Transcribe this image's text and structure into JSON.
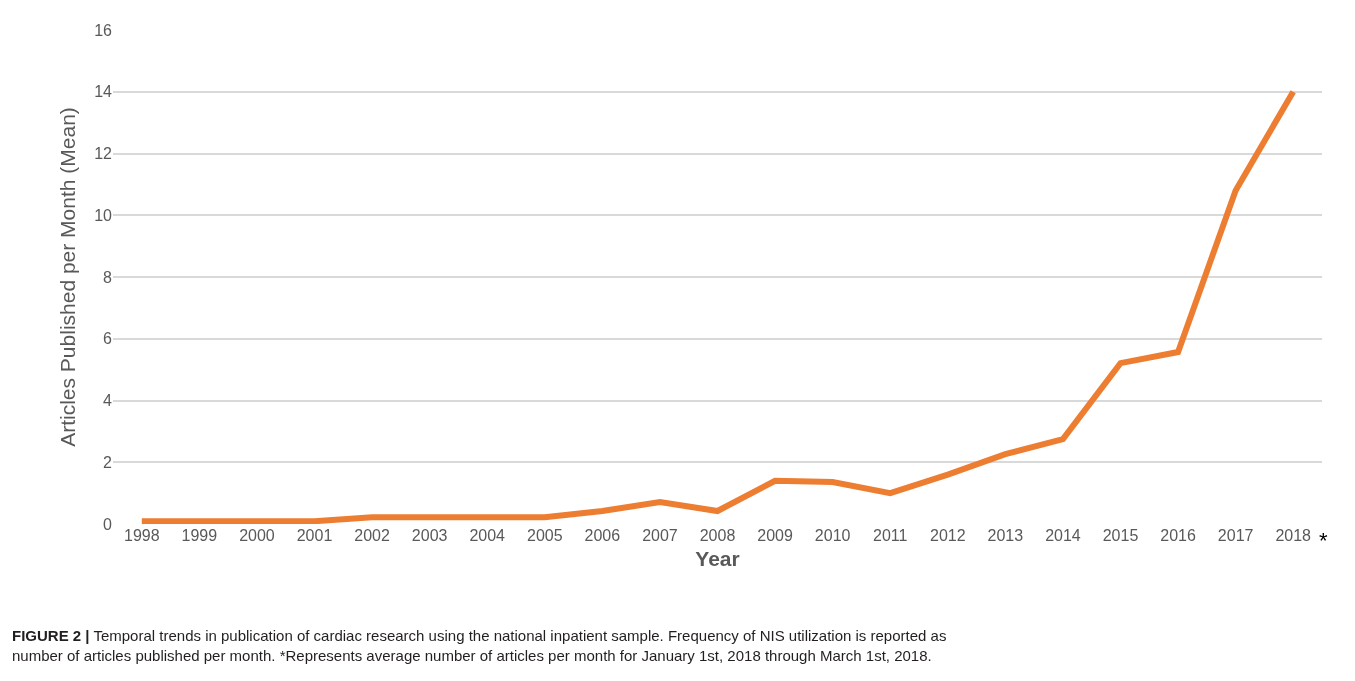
{
  "chart_data": {
    "type": "line",
    "xlabel": "Year",
    "ylabel": "Articles Published per Month (Mean)",
    "categories": [
      "1998",
      "1999",
      "2000",
      "2001",
      "2002",
      "2003",
      "2004",
      "2005",
      "2006",
      "2007",
      "2008",
      "2009",
      "2010",
      "2011",
      "2012",
      "2013",
      "2014",
      "2015",
      "2016",
      "2017",
      "2018"
    ],
    "series": [
      {
        "color": "#ed7d31",
        "values": [
          0.09,
          0.09,
          0.09,
          0.09,
          0.22,
          0.22,
          0.22,
          0.22,
          0.42,
          0.71,
          0.42,
          1.4,
          1.36,
          1.0,
          1.6,
          2.26,
          2.75,
          5.21,
          5.57,
          10.8,
          14.0
        ]
      }
    ],
    "ylim": [
      0,
      16
    ],
    "yticks": [
      0,
      2,
      4,
      6,
      8,
      10,
      12,
      14,
      16
    ],
    "grid": "y",
    "marker": "none",
    "line_style": "solid",
    "annotations": [
      "*",
      "FIGURE 2 | Temporal trends in publication of cardiac research using the national inpatient sample. Frequency of NIS utilization is reported as number of articles published per month. *Represents average number of articles per month for January 1st, 2018 through March 1st, 2018."
    ]
  }
}
